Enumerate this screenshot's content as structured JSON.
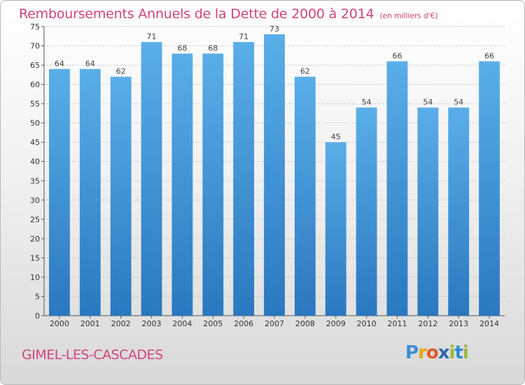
{
  "title": "Remboursements Annuels de la Dette de 2000 à 2014",
  "unit_label": "(en milliers d'€)",
  "commune": "GIMEL-LES-CASCADES",
  "brand": {
    "letters": [
      "P",
      "r",
      "o",
      "x",
      "i",
      "t",
      "i"
    ],
    "colors": {
      "P": "#3f8fd1",
      "r": "#e0a800",
      "o": "#e25a2a",
      "x": "#2f66b5",
      "i": "#9ab83a",
      "t": "#2d8bd3"
    }
  },
  "colors": {
    "title": "#d0457a",
    "bar_top": "#5aaee8",
    "bar_bottom": "#2a78bf",
    "grid": "#c8c8c8"
  },
  "chart_data": {
    "type": "bar",
    "categories": [
      "2000",
      "2001",
      "2002",
      "2003",
      "2004",
      "2005",
      "2006",
      "2007",
      "2008",
      "2009",
      "2010",
      "2011",
      "2012",
      "2013",
      "2014"
    ],
    "values": [
      64,
      64,
      62,
      71,
      68,
      68,
      71,
      73,
      62,
      45,
      54,
      66,
      54,
      54,
      66
    ],
    "ylim": [
      0,
      75
    ],
    "yticks": [
      0,
      5,
      10,
      15,
      20,
      25,
      30,
      35,
      40,
      45,
      50,
      55,
      60,
      65,
      70,
      75
    ],
    "grid": true,
    "data_labels": true
  }
}
